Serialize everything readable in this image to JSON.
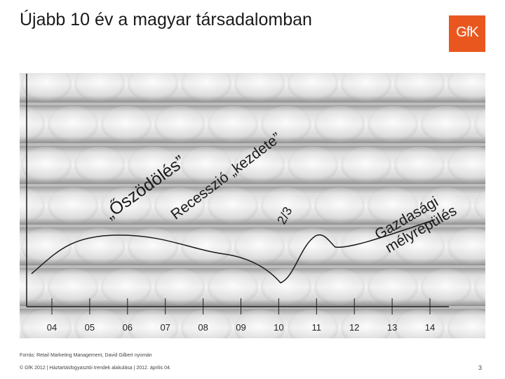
{
  "title": "Újabb 10 év a magyar társadalomban",
  "logo": {
    "text": "GfK",
    "color": "#e9571f"
  },
  "labels": {
    "oszodoles_line1": "„Őszödölés”",
    "recesszio_line1": "Recesszió „kezdete”",
    "two_thirds": "2/3",
    "gazdasagi_line1": "Gazdasági",
    "gazdasagi_line2": "mélyrepülés"
  },
  "axis": {
    "ticks": [
      "04",
      "05",
      "06",
      "07",
      "08",
      "09",
      "10",
      "11",
      "12",
      "13",
      "14"
    ]
  },
  "source": "Forrás: Retail Marketing Management, David Gilbert nyomán",
  "footer": "© GfK 2012 | Háztartásfogyasztói trendek alakulása | 2012. április 04.",
  "page_number": "3"
}
